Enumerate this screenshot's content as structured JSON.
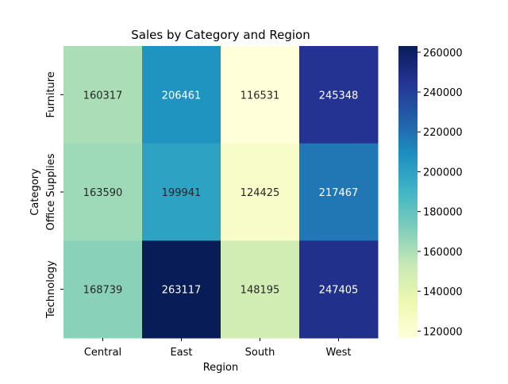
{
  "chart_data": {
    "type": "heatmap",
    "title": "Sales by Category and Region",
    "xlabel": "Region",
    "ylabel": "Category",
    "x_categories": [
      "Central",
      "East",
      "South",
      "West"
    ],
    "y_categories": [
      "Furniture",
      "Office Supplies",
      "Technology"
    ],
    "values": [
      [
        160317,
        206461,
        116531,
        245348
      ],
      [
        163590,
        199941,
        124425,
        217467
      ],
      [
        168739,
        263117,
        148195,
        247405
      ]
    ],
    "colormap": "YlGnBu",
    "color_range": [
      116531,
      263117
    ],
    "colorbar_ticks": [
      120000,
      140000,
      160000,
      180000,
      200000,
      220000,
      240000,
      260000
    ],
    "annotations": true,
    "grid": false
  }
}
